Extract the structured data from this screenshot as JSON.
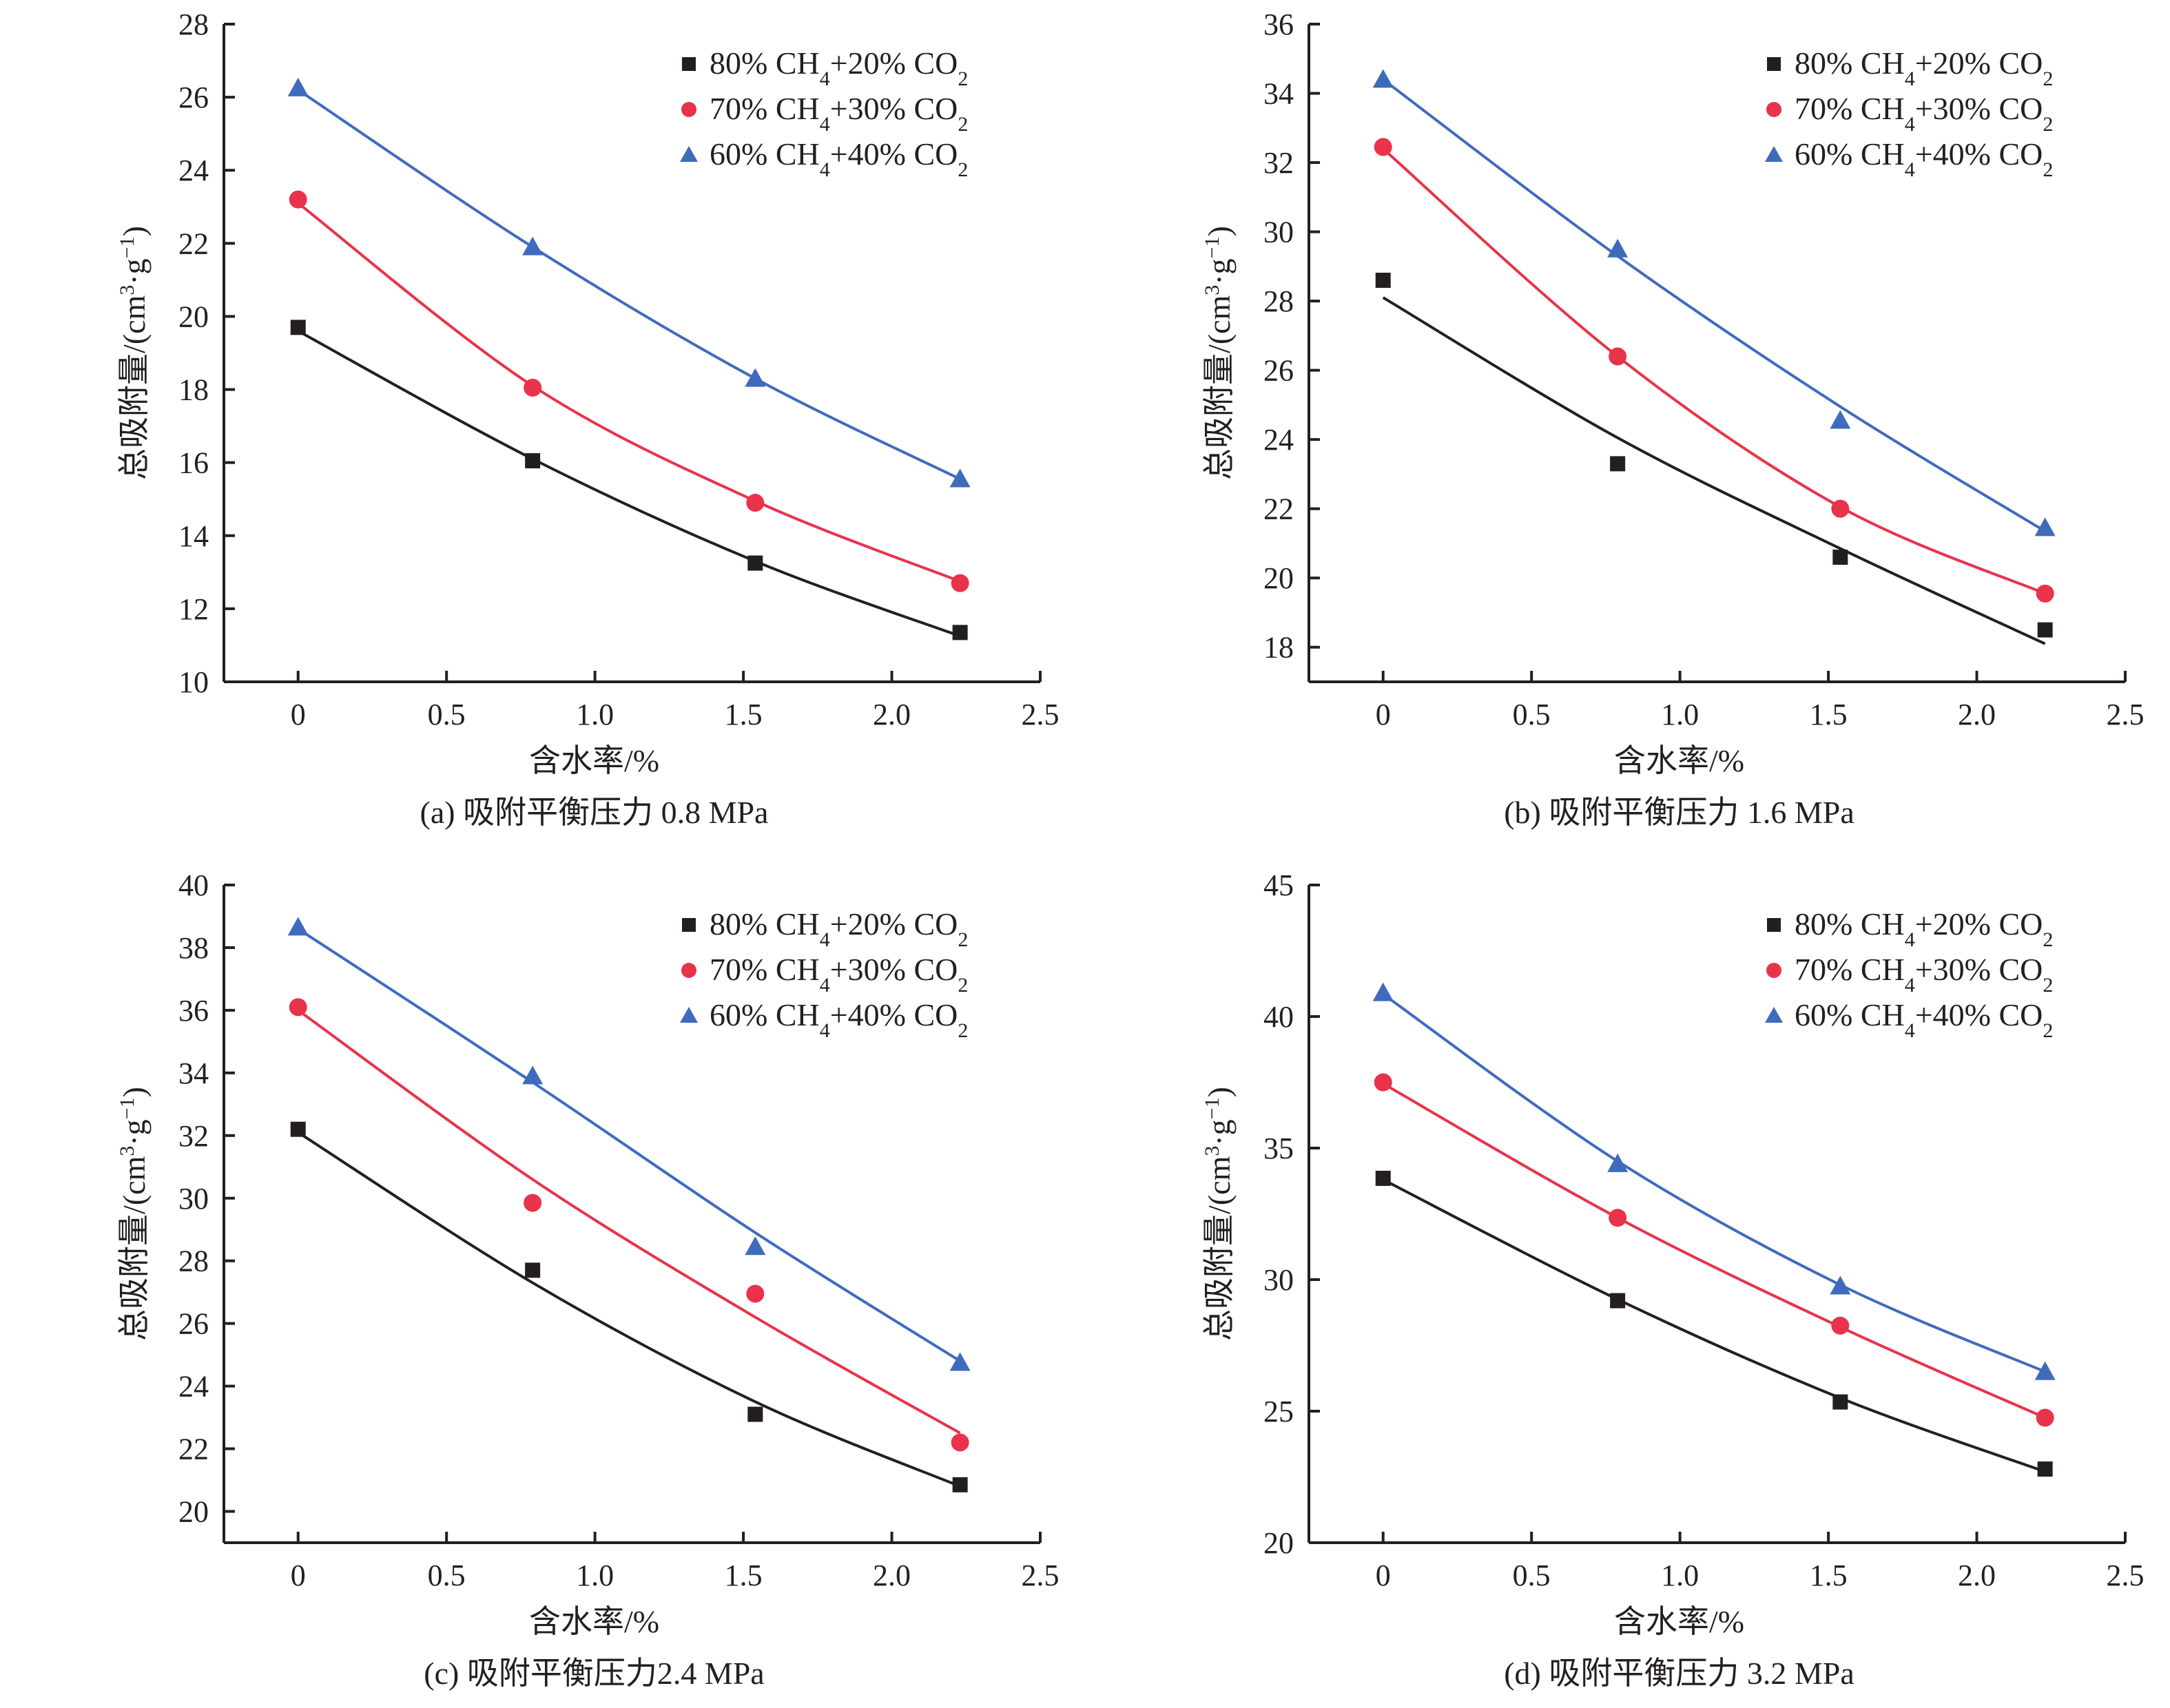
{
  "chart_data": [
    {
      "id": "a",
      "type": "scatter",
      "caption": "(a) 吸附平衡压力 0.8 MPa",
      "xlabel": "含水率/%",
      "ylabel": "总吸附量/(cm³·g⁻¹)",
      "xlim": [
        -0.25,
        2.5
      ],
      "ylim": [
        10,
        28
      ],
      "xticks": [
        0,
        0.5,
        1.0,
        1.5,
        2.0,
        2.5
      ],
      "xtick_labels": [
        "0",
        "0.5",
        "1.0",
        "1.5",
        "2.0",
        "2.5"
      ],
      "yticks": [
        10,
        12,
        14,
        16,
        18,
        20,
        22,
        24,
        26,
        28
      ],
      "x": [
        0,
        0.79,
        1.54,
        2.23
      ],
      "legend_position": "top-right",
      "grid": false,
      "trendlines": true,
      "series": [
        {
          "name": "80% CH4+20% CO2",
          "marker": "square",
          "color": "#231f20",
          "values": [
            19.7,
            16.05,
            13.25,
            11.35
          ],
          "fit": [
            19.6,
            16.1,
            13.3,
            11.25
          ]
        },
        {
          "name": "70% CH4+30% CO2",
          "marker": "circle",
          "color": "#e8334a",
          "values": [
            23.2,
            18.05,
            14.9,
            12.7
          ],
          "fit": [
            23.1,
            18.1,
            14.95,
            12.75
          ]
        },
        {
          "name": "60% CH4+40% CO2",
          "marker": "triangle",
          "color": "#3f6bbd",
          "values": [
            26.25,
            21.9,
            18.3,
            15.55
          ],
          "fit": [
            26.2,
            21.9,
            18.3,
            15.55
          ]
        }
      ]
    },
    {
      "id": "b",
      "type": "scatter",
      "caption": "(b) 吸附平衡压力 1.6 MPa",
      "xlabel": "含水率/%",
      "ylabel": "总吸附量/(cm³·g⁻¹)",
      "xlim": [
        -0.25,
        2.5
      ],
      "ylim": [
        17,
        36
      ],
      "xticks": [
        0,
        0.5,
        1.0,
        1.5,
        2.0,
        2.5
      ],
      "xtick_labels": [
        "0",
        "0.5",
        "1.0",
        "1.5",
        "2.0",
        "2.5"
      ],
      "yticks": [
        18,
        20,
        22,
        24,
        26,
        28,
        30,
        32,
        34,
        36
      ],
      "x": [
        0,
        0.79,
        1.54,
        2.23
      ],
      "legend_position": "top-right",
      "grid": false,
      "trendlines": true,
      "series": [
        {
          "name": "80% CH4+20% CO2",
          "marker": "square",
          "color": "#231f20",
          "values": [
            28.6,
            23.3,
            20.6,
            18.5
          ],
          "fit": [
            28.1,
            24.05,
            20.85,
            18.1
          ]
        },
        {
          "name": "70% CH4+30% CO2",
          "marker": "circle",
          "color": "#e8334a",
          "values": [
            32.45,
            26.4,
            22.0,
            19.55
          ],
          "fit": [
            32.4,
            26.4,
            22.05,
            19.55
          ]
        },
        {
          "name": "60% CH4+40% CO2",
          "marker": "triangle",
          "color": "#3f6bbd",
          "values": [
            34.4,
            29.5,
            24.55,
            21.45
          ],
          "fit": [
            34.4,
            29.3,
            24.95,
            21.35
          ]
        }
      ]
    },
    {
      "id": "c",
      "type": "scatter",
      "caption": "(c) 吸附平衡压力2.4 MPa",
      "xlabel": "含水率/%",
      "ylabel": "总吸附量/(cm³·g⁻¹)",
      "xlim": [
        -0.25,
        2.5
      ],
      "ylim": [
        19,
        40
      ],
      "xticks": [
        0,
        0.5,
        1.0,
        1.5,
        2.0,
        2.5
      ],
      "xtick_labels": [
        "0",
        "0.5",
        "1.0",
        "1.5",
        "2.0",
        "2.5"
      ],
      "yticks": [
        20,
        22,
        24,
        26,
        28,
        30,
        32,
        34,
        36,
        38,
        40
      ],
      "x": [
        0,
        0.79,
        1.54,
        2.23
      ],
      "legend_position": "top-right",
      "grid": false,
      "trendlines": true,
      "series": [
        {
          "name": "80% CH4+20% CO2",
          "marker": "square",
          "color": "#231f20",
          "values": [
            32.2,
            27.7,
            23.1,
            20.85
          ],
          "fit": [
            32.1,
            27.3,
            23.5,
            20.8
          ]
        },
        {
          "name": "70% CH4+30% CO2",
          "marker": "circle",
          "color": "#e8334a",
          "values": [
            36.1,
            29.85,
            26.95,
            22.2
          ],
          "fit": [
            36.0,
            30.6,
            26.2,
            22.5
          ]
        },
        {
          "name": "60% CH4+40% CO2",
          "marker": "triangle",
          "color": "#3f6bbd",
          "values": [
            38.65,
            33.9,
            28.45,
            24.75
          ],
          "fit": [
            38.6,
            33.7,
            28.9,
            24.8
          ]
        }
      ]
    },
    {
      "id": "d",
      "type": "scatter",
      "caption": "(d) 吸附平衡压力 3.2 MPa",
      "xlabel": "含水率/%",
      "ylabel": "总吸附量/(cm³·g⁻¹)",
      "xlim": [
        -0.25,
        2.5
      ],
      "ylim": [
        20,
        45
      ],
      "xticks": [
        0,
        0.5,
        1.0,
        1.5,
        2.0,
        2.5
      ],
      "xtick_labels": [
        "0",
        "0.5",
        "1.0",
        "1.5",
        "2.0",
        "2.5"
      ],
      "yticks": [
        20,
        25,
        30,
        35,
        40,
        45
      ],
      "x": [
        0,
        0.79,
        1.54,
        2.23
      ],
      "legend_position": "top-right",
      "grid": false,
      "trendlines": true,
      "series": [
        {
          "name": "80% CH4+20% CO2",
          "marker": "square",
          "color": "#231f20",
          "values": [
            33.85,
            29.2,
            25.35,
            22.8
          ],
          "fit": [
            33.8,
            29.25,
            25.5,
            22.7
          ]
        },
        {
          "name": "70% CH4+30% CO2",
          "marker": "circle",
          "color": "#e8334a",
          "values": [
            37.5,
            32.35,
            28.25,
            24.75
          ],
          "fit": [
            37.45,
            32.35,
            28.2,
            24.75
          ]
        },
        {
          "name": "60% CH4+40% CO2",
          "marker": "triangle",
          "color": "#3f6bbd",
          "values": [
            40.9,
            34.4,
            29.75,
            26.5
          ],
          "fit": [
            40.85,
            34.5,
            29.8,
            26.5
          ]
        }
      ]
    }
  ],
  "legend_labels": [
    {
      "pct1": "80%",
      "gas1": "CH",
      "sub1": "4",
      "plus": "+",
      "pct2": "20%",
      "gas2": "CO",
      "sub2": "2"
    },
    {
      "pct1": "70%",
      "gas1": "CH",
      "sub1": "4",
      "plus": "+",
      "pct2": "30%",
      "gas2": "CO",
      "sub2": "2"
    },
    {
      "pct1": "60%",
      "gas1": "CH",
      "sub1": "4",
      "plus": "+",
      "pct2": "40%",
      "gas2": "CO",
      "sub2": "2"
    }
  ],
  "ylabel_parts": {
    "chinese": "总吸附量",
    "unit_open": "/(cm",
    "sup3": "3",
    "dot_g": "·g",
    "supm1": "−1",
    "close": ")"
  }
}
